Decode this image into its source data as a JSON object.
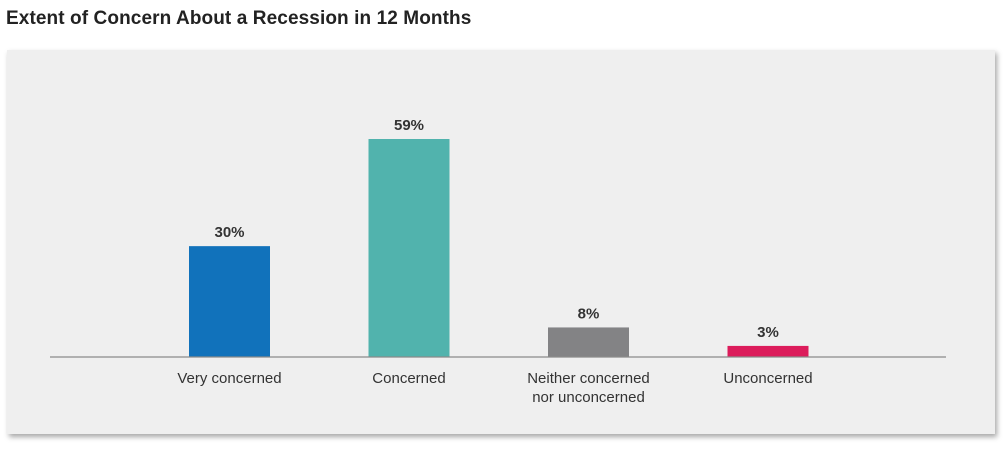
{
  "title": "Extent of Concern About a Recession in 12 Months",
  "chart_data": {
    "type": "bar",
    "title": "Extent of Concern About a Recession in 12 Months",
    "categories": [
      [
        "Very concerned"
      ],
      [
        "Concerned"
      ],
      [
        "Neither concerned",
        "nor unconcerned"
      ],
      [
        "Unconcerned"
      ]
    ],
    "values": [
      30,
      59,
      8,
      3
    ],
    "value_labels": [
      "30%",
      "59%",
      "8%",
      "3%"
    ],
    "colors": [
      "#1172bb",
      "#51b3ad",
      "#838385",
      "#dc1c5b"
    ],
    "unit": "%",
    "ylim": [
      0,
      59
    ],
    "grid": false,
    "legend": "none"
  }
}
